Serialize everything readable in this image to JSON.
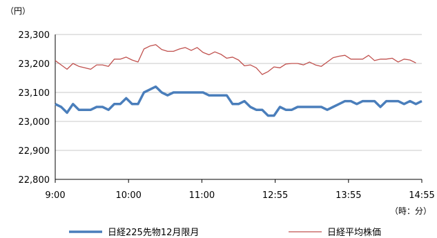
{
  "chart_data": {
    "type": "line",
    "y_unit_label": "（円）",
    "x_unit_label": "（時：分）",
    "ylim": [
      22800,
      23300
    ],
    "y_ticks": [
      "22,800",
      "22,900",
      "23,000",
      "23,100",
      "23,200",
      "23,300"
    ],
    "x_tick_labels": [
      "9:00",
      "10:00",
      "11:00",
      "12:55",
      "13:55",
      "14:55"
    ],
    "grid": "horizontal",
    "legend_position": "bottom",
    "series": [
      {
        "name": "日経225先物12月限月",
        "color": "#4a7ebb",
        "values": [
          23060,
          23050,
          23030,
          23060,
          23040,
          23040,
          23040,
          23050,
          23050,
          23040,
          23060,
          23060,
          23080,
          23060,
          23060,
          23100,
          23110,
          23120,
          23100,
          23090,
          23100,
          23100,
          23100,
          23100,
          23100,
          23100,
          23090,
          23090,
          23090,
          23090,
          23060,
          23060,
          23070,
          23050,
          23040,
          23040,
          23020,
          23020,
          23050,
          23040,
          23040,
          23050,
          23050,
          23050,
          23050,
          23050,
          23040,
          23050,
          23060,
          23070,
          23070,
          23060,
          23070,
          23070,
          23070,
          23050,
          23070,
          23070,
          23070,
          23060,
          23070,
          23060,
          23070
        ]
      },
      {
        "name": "日経平均株価",
        "color": "#c0504d",
        "values": [
          23210,
          23195,
          23180,
          23200,
          23190,
          23185,
          23180,
          23195,
          23195,
          23190,
          23215,
          23215,
          23222,
          23212,
          23205,
          23250,
          23260,
          23265,
          23248,
          23242,
          23242,
          23250,
          23255,
          23245,
          23255,
          23238,
          23230,
          23240,
          23232,
          23218,
          23222,
          23212,
          23192,
          23195,
          23185,
          23162,
          23172,
          23188,
          23185,
          23198,
          23200,
          23200,
          23195,
          23205,
          23195,
          23190,
          23205,
          23220,
          23225,
          23228,
          23215,
          23215,
          23215,
          23228,
          23210,
          23215,
          23215,
          23218,
          23205,
          23215,
          23212,
          23202
        ]
      }
    ]
  }
}
